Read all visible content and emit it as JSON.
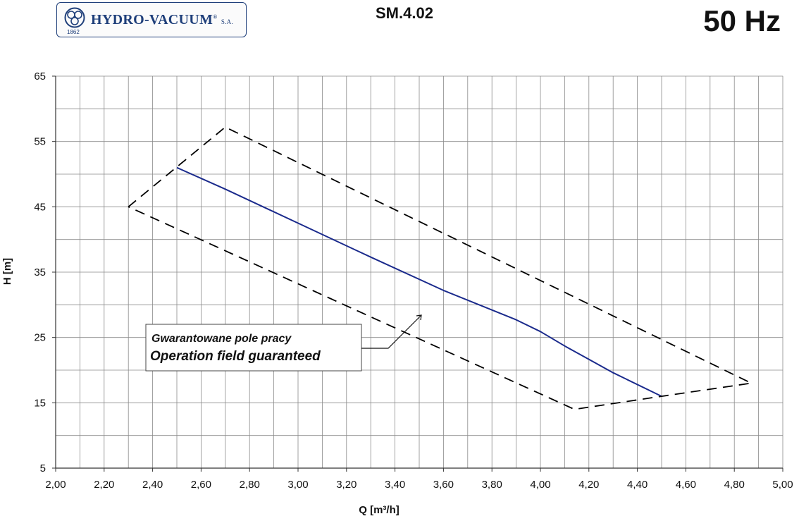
{
  "header": {
    "brand": "HYDRO-VACUUM",
    "brand_suffix": "S.A.",
    "brand_year": "1862",
    "model": "SM.4.02",
    "frequency": "50 Hz"
  },
  "annotation": {
    "line1": "Gwarantowane pole pracy",
    "line2": "Operation field guaranteed"
  },
  "colors": {
    "curve": "#1a2a8c",
    "field": "#000000",
    "grid": "#8a8a8a",
    "brand": "#1f3f7a"
  },
  "chart_data": {
    "type": "line",
    "xlabel": "Q [m³/h]",
    "ylabel": "H [m]",
    "xlim": [
      2.0,
      5.0
    ],
    "ylim": [
      5,
      65
    ],
    "x_ticks": [
      "2,00",
      "2,20",
      "2,40",
      "2,60",
      "2,80",
      "3,00",
      "3,20",
      "3,40",
      "3,60",
      "3,80",
      "4,00",
      "4,20",
      "4,40",
      "4,60",
      "4,80",
      "5,00"
    ],
    "y_ticks": [
      "5",
      "15",
      "25",
      "35",
      "45",
      "55",
      "65"
    ],
    "grid": true,
    "series": [
      {
        "style": "solid",
        "x": [
          2.5,
          2.7,
          3.0,
          3.3,
          3.6,
          3.9,
          4.0,
          4.1,
          4.3,
          4.5
        ],
        "y": [
          51.0,
          47.7,
          42.5,
          37.3,
          32.2,
          27.7,
          25.9,
          23.7,
          19.6,
          16.0
        ]
      },
      {
        "style": "dashed",
        "closed": true,
        "x": [
          2.3,
          2.7,
          4.87,
          4.5,
          4.14,
          2.3
        ],
        "y": [
          45.0,
          57.2,
          18.0,
          16.0,
          14.0,
          45.0
        ]
      }
    ]
  }
}
